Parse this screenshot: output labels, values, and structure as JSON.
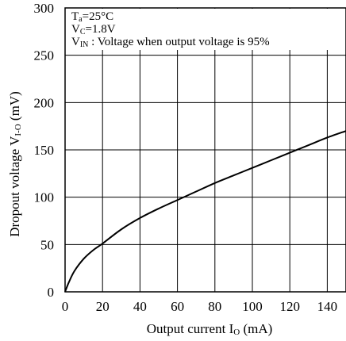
{
  "chart_data": {
    "type": "line",
    "xlabel": {
      "main": "Output current I",
      "sub": "O",
      "unit": " (mA)"
    },
    "ylabel": {
      "main": "Dropout voltage V",
      "sub": "I-O",
      "unit": " (mV)"
    },
    "xlim": [
      0,
      150
    ],
    "ylim": [
      0,
      300
    ],
    "x_ticks": [
      0,
      20,
      40,
      60,
      80,
      100,
      120,
      140
    ],
    "y_ticks": [
      0,
      50,
      100,
      150,
      200,
      250,
      300
    ],
    "grid": true,
    "annotations": [
      {
        "main": "T",
        "sub": "a",
        "rest": "=25°C"
      },
      {
        "main": "V",
        "sub": "C",
        "rest": "=1.8V"
      },
      {
        "main": "V",
        "sub": "IN",
        "rest": " : Voltage when output voltage is 95%"
      }
    ],
    "series": [
      {
        "x": [
          0,
          2,
          5,
          10,
          15,
          20,
          30,
          40,
          50,
          60,
          70,
          80,
          90,
          100,
          110,
          120,
          130,
          140,
          150
        ],
        "y": [
          0,
          10,
          22,
          35,
          44,
          51,
          66,
          78,
          88,
          97,
          106,
          115,
          123,
          131,
          139,
          147,
          155,
          163,
          170
        ]
      }
    ]
  }
}
